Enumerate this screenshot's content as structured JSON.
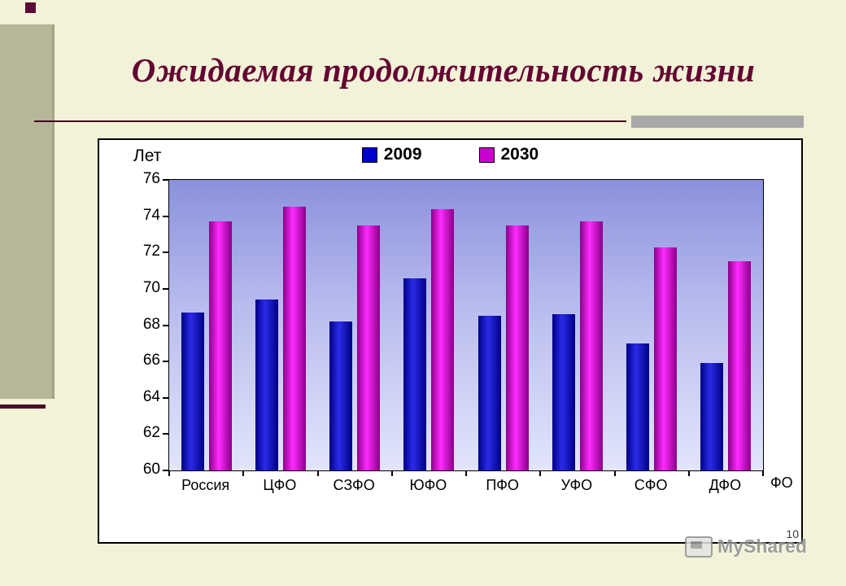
{
  "slide": {
    "title": "Ожидаемая продолжительность жизни",
    "page_number": "10",
    "watermark_text": "MyShared"
  },
  "colors": {
    "slide_background": "#f2f2d8",
    "title_text": "#640532",
    "accent_maroon": "#4a0a2a",
    "left_bar": "#b6b699",
    "rule_shadow": "#a8a8a8",
    "plot_gradient_top": "#8a91dc",
    "plot_gradient_bottom": "#e2e5fb",
    "series_2009": "#0000cc",
    "series_2030": "#cc00cc"
  },
  "chart_data": {
    "type": "bar",
    "title": "",
    "ylabel": "Лет",
    "xlabel": "ФО",
    "ylim": [
      60,
      76
    ],
    "ytick_step": 2,
    "yticks": [
      76,
      74,
      72,
      70,
      68,
      66,
      64,
      62,
      60
    ],
    "grid": false,
    "legend_position": "top",
    "categories": [
      "Россия",
      "ЦФО",
      "СЗФО",
      "ЮФО",
      "ПФО",
      "УФО",
      "СФО",
      "ДФО"
    ],
    "series": [
      {
        "name": "2009",
        "color": "#0000cc",
        "values": [
          68.7,
          69.4,
          68.2,
          70.6,
          68.5,
          68.6,
          67.0,
          65.9
        ]
      },
      {
        "name": "2030",
        "color": "#cc00cc",
        "values": [
          73.7,
          74.5,
          73.5,
          74.4,
          73.5,
          73.7,
          72.3,
          71.5
        ]
      }
    ]
  }
}
